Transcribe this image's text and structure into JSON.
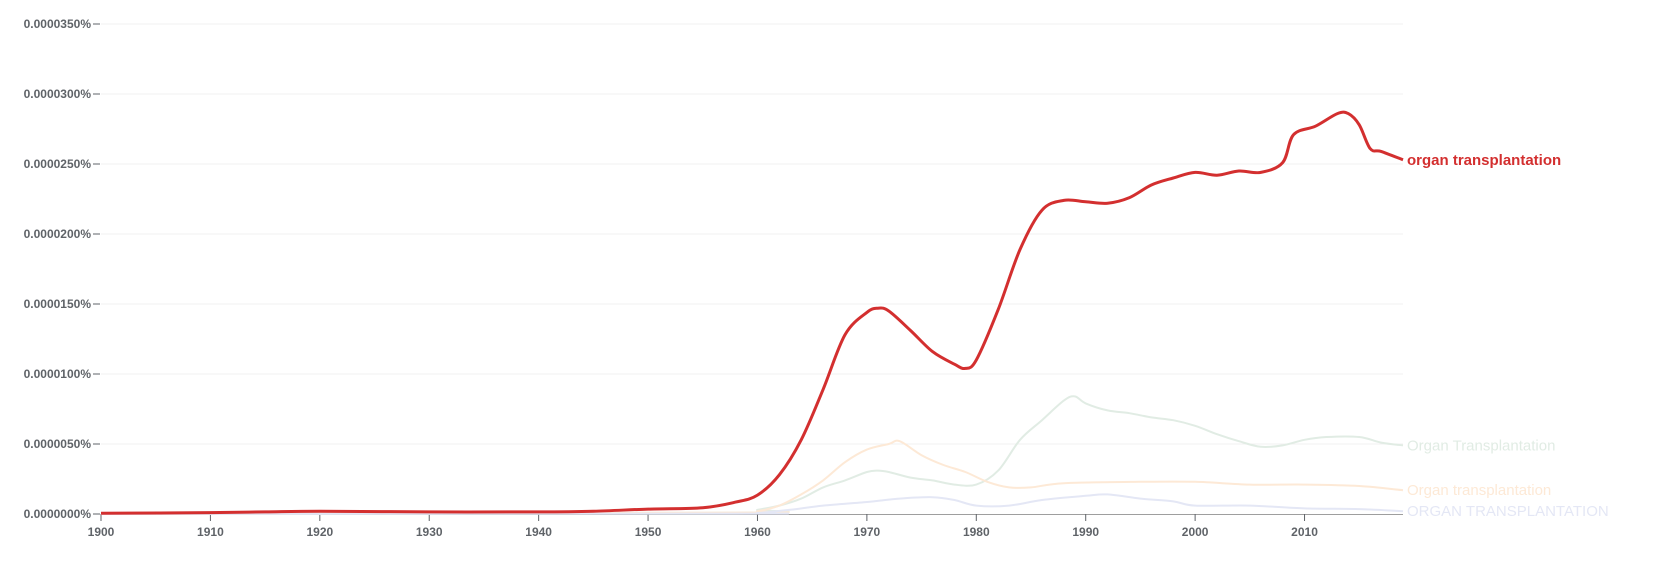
{
  "chart_data": {
    "type": "line",
    "title": "",
    "xlabel": "",
    "ylabel": "",
    "value_scale_note": "values are in units of 0.000001%",
    "xlim": [
      1900,
      2019
    ],
    "ylim": [
      0,
      35
    ],
    "grid": true,
    "legend": "right-end-labels",
    "x_ticks": [
      "1900",
      "1910",
      "1920",
      "1930",
      "1940",
      "1950",
      "1960",
      "1970",
      "1980",
      "1990",
      "2000",
      "2010"
    ],
    "y_ticks": [
      "0.0000000%",
      "0.0000050%",
      "0.0000100%",
      "0.0000150%",
      "0.0000200%",
      "0.0000250%",
      "0.0000300%",
      "0.0000350%"
    ],
    "series": [
      {
        "name": "Organ Transplantation",
        "color": "#e1ece4",
        "width": 2,
        "points": [
          [
            1900,
            0
          ],
          [
            1958,
            0.1
          ],
          [
            1960,
            0.3
          ],
          [
            1962,
            0.6
          ],
          [
            1964,
            1.1
          ],
          [
            1966,
            1.9
          ],
          [
            1968,
            2.4
          ],
          [
            1970,
            3.0
          ],
          [
            1971,
            3.1
          ],
          [
            1972,
            3.0
          ],
          [
            1974,
            2.6
          ],
          [
            1976,
            2.4
          ],
          [
            1978,
            2.1
          ],
          [
            1980,
            2.1
          ],
          [
            1982,
            3.1
          ],
          [
            1984,
            5.3
          ],
          [
            1986,
            6.7
          ],
          [
            1988,
            8.1
          ],
          [
            1989,
            8.4
          ],
          [
            1990,
            7.9
          ],
          [
            1992,
            7.4
          ],
          [
            1994,
            7.2
          ],
          [
            1996,
            6.9
          ],
          [
            1998,
            6.7
          ],
          [
            2000,
            6.3
          ],
          [
            2002,
            5.7
          ],
          [
            2004,
            5.2
          ],
          [
            2006,
            4.8
          ],
          [
            2008,
            4.9
          ],
          [
            2010,
            5.3
          ],
          [
            2012,
            5.5
          ],
          [
            2015,
            5.5
          ],
          [
            2017,
            5.1
          ],
          [
            2019,
            4.9
          ]
        ]
      },
      {
        "name": "Organ transplantation",
        "color": "#fde9d6",
        "width": 2,
        "points": [
          [
            1900,
            0
          ],
          [
            1958,
            0.1
          ],
          [
            1960,
            0.2
          ],
          [
            1962,
            0.6
          ],
          [
            1964,
            1.4
          ],
          [
            1966,
            2.4
          ],
          [
            1968,
            3.7
          ],
          [
            1970,
            4.6
          ],
          [
            1972,
            5.0
          ],
          [
            1973,
            5.2
          ],
          [
            1975,
            4.2
          ],
          [
            1977,
            3.5
          ],
          [
            1979,
            3.0
          ],
          [
            1981,
            2.3
          ],
          [
            1983,
            1.9
          ],
          [
            1985,
            1.9
          ],
          [
            1988,
            2.2
          ],
          [
            1995,
            2.3
          ],
          [
            2000,
            2.3
          ],
          [
            2005,
            2.1
          ],
          [
            2010,
            2.1
          ],
          [
            2015,
            2.0
          ],
          [
            2019,
            1.7
          ]
        ]
      },
      {
        "name": "ORGAN TRANSPLANTATION",
        "color": "#e4e7f5",
        "width": 2,
        "points": [
          [
            1900,
            0
          ],
          [
            1958,
            0.03
          ],
          [
            1960,
            0.07
          ],
          [
            1963,
            0.3
          ],
          [
            1966,
            0.6
          ],
          [
            1970,
            0.86
          ],
          [
            1973,
            1.1
          ],
          [
            1976,
            1.2
          ],
          [
            1978,
            1.0
          ],
          [
            1980,
            0.6
          ],
          [
            1983,
            0.6
          ],
          [
            1986,
            1.0
          ],
          [
            1990,
            1.3
          ],
          [
            1992,
            1.4
          ],
          [
            1995,
            1.1
          ],
          [
            1998,
            0.9
          ],
          [
            2000,
            0.6
          ],
          [
            2005,
            0.6
          ],
          [
            2010,
            0.4
          ],
          [
            2015,
            0.35
          ],
          [
            2019,
            0.2
          ]
        ]
      },
      {
        "name": "organ transplantation",
        "color": "#d32f2f",
        "width": 3,
        "points": [
          [
            1900,
            0.05
          ],
          [
            1910,
            0.1
          ],
          [
            1915,
            0.15
          ],
          [
            1920,
            0.2
          ],
          [
            1930,
            0.15
          ],
          [
            1940,
            0.15
          ],
          [
            1945,
            0.2
          ],
          [
            1950,
            0.35
          ],
          [
            1955,
            0.45
          ],
          [
            1958,
            0.85
          ],
          [
            1960,
            1.35
          ],
          [
            1962,
            2.8
          ],
          [
            1964,
            5.3
          ],
          [
            1966,
            8.9
          ],
          [
            1968,
            12.8
          ],
          [
            1970,
            14.4
          ],
          [
            1971,
            14.7
          ],
          [
            1972,
            14.5
          ],
          [
            1974,
            13.1
          ],
          [
            1976,
            11.6
          ],
          [
            1978,
            10.7
          ],
          [
            1979,
            10.4
          ],
          [
            1980,
            11.0
          ],
          [
            1982,
            14.6
          ],
          [
            1984,
            18.9
          ],
          [
            1986,
            21.7
          ],
          [
            1988,
            22.4
          ],
          [
            1990,
            22.3
          ],
          [
            1992,
            22.2
          ],
          [
            1994,
            22.6
          ],
          [
            1996,
            23.5
          ],
          [
            1998,
            24.0
          ],
          [
            2000,
            24.4
          ],
          [
            2002,
            24.2
          ],
          [
            2004,
            24.5
          ],
          [
            2006,
            24.4
          ],
          [
            2008,
            25.1
          ],
          [
            2009,
            27.1
          ],
          [
            2011,
            27.7
          ],
          [
            2013,
            28.6
          ],
          [
            2014,
            28.6
          ],
          [
            2015,
            27.8
          ],
          [
            2016,
            26.1
          ],
          [
            2017,
            25.9
          ],
          [
            2019,
            25.3
          ]
        ]
      }
    ]
  }
}
